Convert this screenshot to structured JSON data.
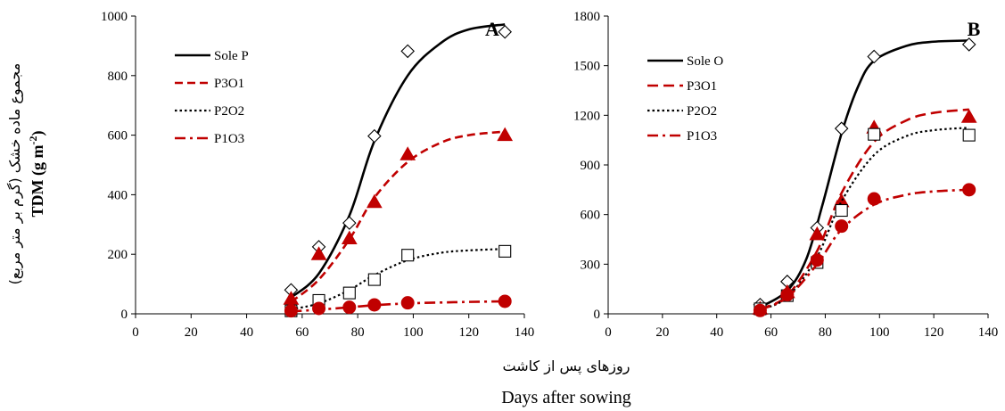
{
  "figure": {
    "y_label_fa": "مجموع ماده خشک (گرم بر متر مربع)",
    "y_label_en_main": "TDM (g m",
    "y_label_en_sup": "-2",
    "y_label_en_end": ")",
    "x_label_fa": "روزهای پس از کاشت",
    "x_label_en": "Days after sowing"
  },
  "chart_data": [
    {
      "type": "scatter",
      "panel": "A",
      "xlim": [
        0,
        140
      ],
      "ylim": [
        0,
        1000
      ],
      "x_ticks": [
        0,
        20,
        40,
        60,
        80,
        100,
        120,
        140
      ],
      "y_ticks": [
        0,
        200,
        400,
        600,
        800,
        1000
      ],
      "grid": false,
      "legend_position": "top-left",
      "series": [
        {
          "name": "Sole P",
          "color": "#000000",
          "line": "solid",
          "marker": "diamond",
          "x": [
            56,
            66,
            77,
            86,
            98,
            133
          ],
          "y": [
            80,
            225,
            305,
            597,
            882,
            947
          ],
          "fit": [
            {
              "x": 56,
              "y": 55
            },
            {
              "x": 66,
              "y": 135
            },
            {
              "x": 77,
              "y": 330
            },
            {
              "x": 86,
              "y": 580
            },
            {
              "x": 98,
              "y": 800
            },
            {
              "x": 110,
              "y": 910
            },
            {
              "x": 120,
              "y": 955
            },
            {
              "x": 133,
              "y": 972
            }
          ]
        },
        {
          "name": "P3O1",
          "color": "#c00000",
          "line": "dashed",
          "marker": "triangle",
          "x": [
            56,
            66,
            77,
            86,
            98,
            133
          ],
          "y": [
            50,
            200,
            253,
            375,
            535,
            600
          ],
          "fit": [
            {
              "x": 56,
              "y": 40
            },
            {
              "x": 66,
              "y": 115
            },
            {
              "x": 77,
              "y": 250
            },
            {
              "x": 86,
              "y": 390
            },
            {
              "x": 98,
              "y": 510
            },
            {
              "x": 110,
              "y": 575
            },
            {
              "x": 120,
              "y": 600
            },
            {
              "x": 133,
              "y": 612
            }
          ]
        },
        {
          "name": "P2O2",
          "color": "#000000",
          "line": "dotted",
          "marker": "square",
          "x": [
            56,
            66,
            77,
            86,
            98,
            133
          ],
          "y": [
            10,
            45,
            70,
            115,
            197,
            210
          ],
          "fit": [
            {
              "x": 56,
              "y": 15
            },
            {
              "x": 66,
              "y": 35
            },
            {
              "x": 77,
              "y": 80
            },
            {
              "x": 86,
              "y": 130
            },
            {
              "x": 98,
              "y": 180
            },
            {
              "x": 110,
              "y": 205
            },
            {
              "x": 120,
              "y": 213
            },
            {
              "x": 133,
              "y": 218
            }
          ]
        },
        {
          "name": "P1O3",
          "color": "#c00000",
          "line": "dashdot",
          "marker": "circle",
          "x": [
            56,
            66,
            77,
            86,
            98,
            133
          ],
          "y": [
            10,
            18,
            22,
            30,
            37,
            42
          ],
          "fit": [
            {
              "x": 56,
              "y": 8
            },
            {
              "x": 66,
              "y": 14
            },
            {
              "x": 77,
              "y": 22
            },
            {
              "x": 86,
              "y": 29
            },
            {
              "x": 98,
              "y": 35
            },
            {
              "x": 110,
              "y": 38
            },
            {
              "x": 120,
              "y": 40
            },
            {
              "x": 133,
              "y": 42
            }
          ]
        }
      ]
    },
    {
      "type": "scatter",
      "panel": "B",
      "xlim": [
        0,
        140
      ],
      "ylim": [
        0,
        1800
      ],
      "x_ticks": [
        0,
        20,
        40,
        60,
        80,
        100,
        120,
        140
      ],
      "y_ticks": [
        0,
        300,
        600,
        900,
        1200,
        1500,
        1800
      ],
      "grid": false,
      "legend_position": "top-left",
      "series": [
        {
          "name": "Sole O",
          "color": "#000000",
          "line": "solid",
          "marker": "diamond",
          "x": [
            56,
            66,
            77,
            86,
            98,
            133
          ],
          "y": [
            55,
            195,
            520,
            1120,
            1555,
            1628
          ],
          "fit": [
            {
              "x": 56,
              "y": 40
            },
            {
              "x": 66,
              "y": 140
            },
            {
              "x": 73,
              "y": 330
            },
            {
              "x": 79,
              "y": 660
            },
            {
              "x": 86,
              "y": 1090
            },
            {
              "x": 92,
              "y": 1370
            },
            {
              "x": 98,
              "y": 1530
            },
            {
              "x": 110,
              "y": 1620
            },
            {
              "x": 120,
              "y": 1645
            },
            {
              "x": 133,
              "y": 1652
            }
          ]
        },
        {
          "name": "P3O1",
          "color": "#c00000",
          "line": "longdash",
          "marker": "triangle",
          "x": [
            56,
            66,
            77,
            86,
            98,
            133
          ],
          "y": [
            30,
            130,
            480,
            680,
            1125,
            1190
          ],
          "fit": [
            {
              "x": 56,
              "y": 30
            },
            {
              "x": 66,
              "y": 110
            },
            {
              "x": 77,
              "y": 380
            },
            {
              "x": 86,
              "y": 730
            },
            {
              "x": 98,
              "y": 1040
            },
            {
              "x": 110,
              "y": 1170
            },
            {
              "x": 120,
              "y": 1215
            },
            {
              "x": 133,
              "y": 1235
            }
          ]
        },
        {
          "name": "P2O2",
          "color": "#000000",
          "line": "dotted",
          "marker": "square",
          "x": [
            56,
            66,
            77,
            86,
            98,
            133
          ],
          "y": [
            30,
            110,
            310,
            625,
            1085,
            1080
          ],
          "fit": [
            {
              "x": 56,
              "y": 25
            },
            {
              "x": 66,
              "y": 100
            },
            {
              "x": 77,
              "y": 345
            },
            {
              "x": 86,
              "y": 680
            },
            {
              "x": 98,
              "y": 960
            },
            {
              "x": 110,
              "y": 1075
            },
            {
              "x": 120,
              "y": 1110
            },
            {
              "x": 133,
              "y": 1125
            }
          ]
        },
        {
          "name": "P1O3",
          "color": "#c00000",
          "line": "dashdot",
          "marker": "circle",
          "x": [
            56,
            66,
            77,
            86,
            98,
            133
          ],
          "y": [
            20,
            115,
            325,
            530,
            695,
            750
          ],
          "fit": [
            {
              "x": 56,
              "y": 25
            },
            {
              "x": 66,
              "y": 100
            },
            {
              "x": 77,
              "y": 300
            },
            {
              "x": 86,
              "y": 510
            },
            {
              "x": 98,
              "y": 660
            },
            {
              "x": 110,
              "y": 720
            },
            {
              "x": 120,
              "y": 740
            },
            {
              "x": 133,
              "y": 750
            }
          ]
        }
      ]
    }
  ]
}
